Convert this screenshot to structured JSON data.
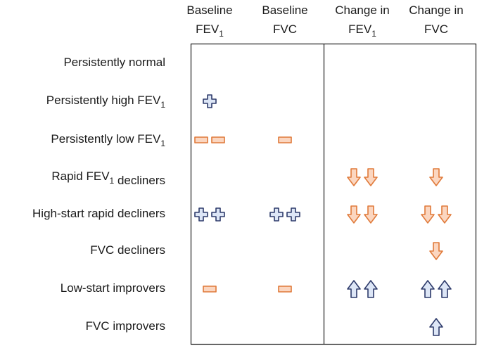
{
  "columns": [
    {
      "lines": [
        [
          "Baseline"
        ],
        [
          "FEV",
          {
            "sub": "1"
          }
        ]
      ]
    },
    {
      "lines": [
        [
          "Baseline"
        ],
        [
          "FVC"
        ]
      ]
    },
    {
      "lines": [
        [
          "Change in"
        ],
        [
          "FEV",
          {
            "sub": "1"
          }
        ]
      ]
    },
    {
      "lines": [
        [
          "Change in"
        ],
        [
          "FVC"
        ]
      ]
    }
  ],
  "rows": [
    {
      "label": [
        "Persistently normal"
      ],
      "cells": [
        null,
        null,
        null,
        null
      ]
    },
    {
      "label": [
        "Persistently high FEV",
        {
          "sub": "1"
        }
      ],
      "cells": [
        {
          "symbol": "plus",
          "count": 1
        },
        null,
        null,
        null
      ]
    },
    {
      "label": [
        "Persistently low FEV",
        {
          "sub": "1"
        }
      ],
      "cells": [
        {
          "symbol": "minus",
          "count": 2
        },
        {
          "symbol": "minus",
          "count": 1
        },
        null,
        null
      ]
    },
    {
      "label": [
        "Rapid FEV",
        {
          "sub": "1"
        },
        " decliners"
      ],
      "cells": [
        null,
        null,
        {
          "symbol": "down",
          "count": 2
        },
        {
          "symbol": "down",
          "count": 1
        }
      ]
    },
    {
      "label": [
        "High-start rapid decliners"
      ],
      "cells": [
        {
          "symbol": "plus",
          "count": 2
        },
        {
          "symbol": "plus",
          "count": 2
        },
        {
          "symbol": "down",
          "count": 2
        },
        {
          "symbol": "down",
          "count": 2
        }
      ]
    },
    {
      "label": [
        "FVC decliners"
      ],
      "cells": [
        null,
        null,
        null,
        {
          "symbol": "down",
          "count": 1
        }
      ]
    },
    {
      "label": [
        "Low-start improvers"
      ],
      "cells": [
        {
          "symbol": "minus",
          "count": 1
        },
        {
          "symbol": "minus",
          "count": 1
        },
        {
          "symbol": "up",
          "count": 2
        },
        {
          "symbol": "up",
          "count": 2
        }
      ]
    },
    {
      "label": [
        "FVC improvers"
      ],
      "cells": [
        null,
        null,
        null,
        {
          "symbol": "up",
          "count": 1
        }
      ]
    }
  ]
}
